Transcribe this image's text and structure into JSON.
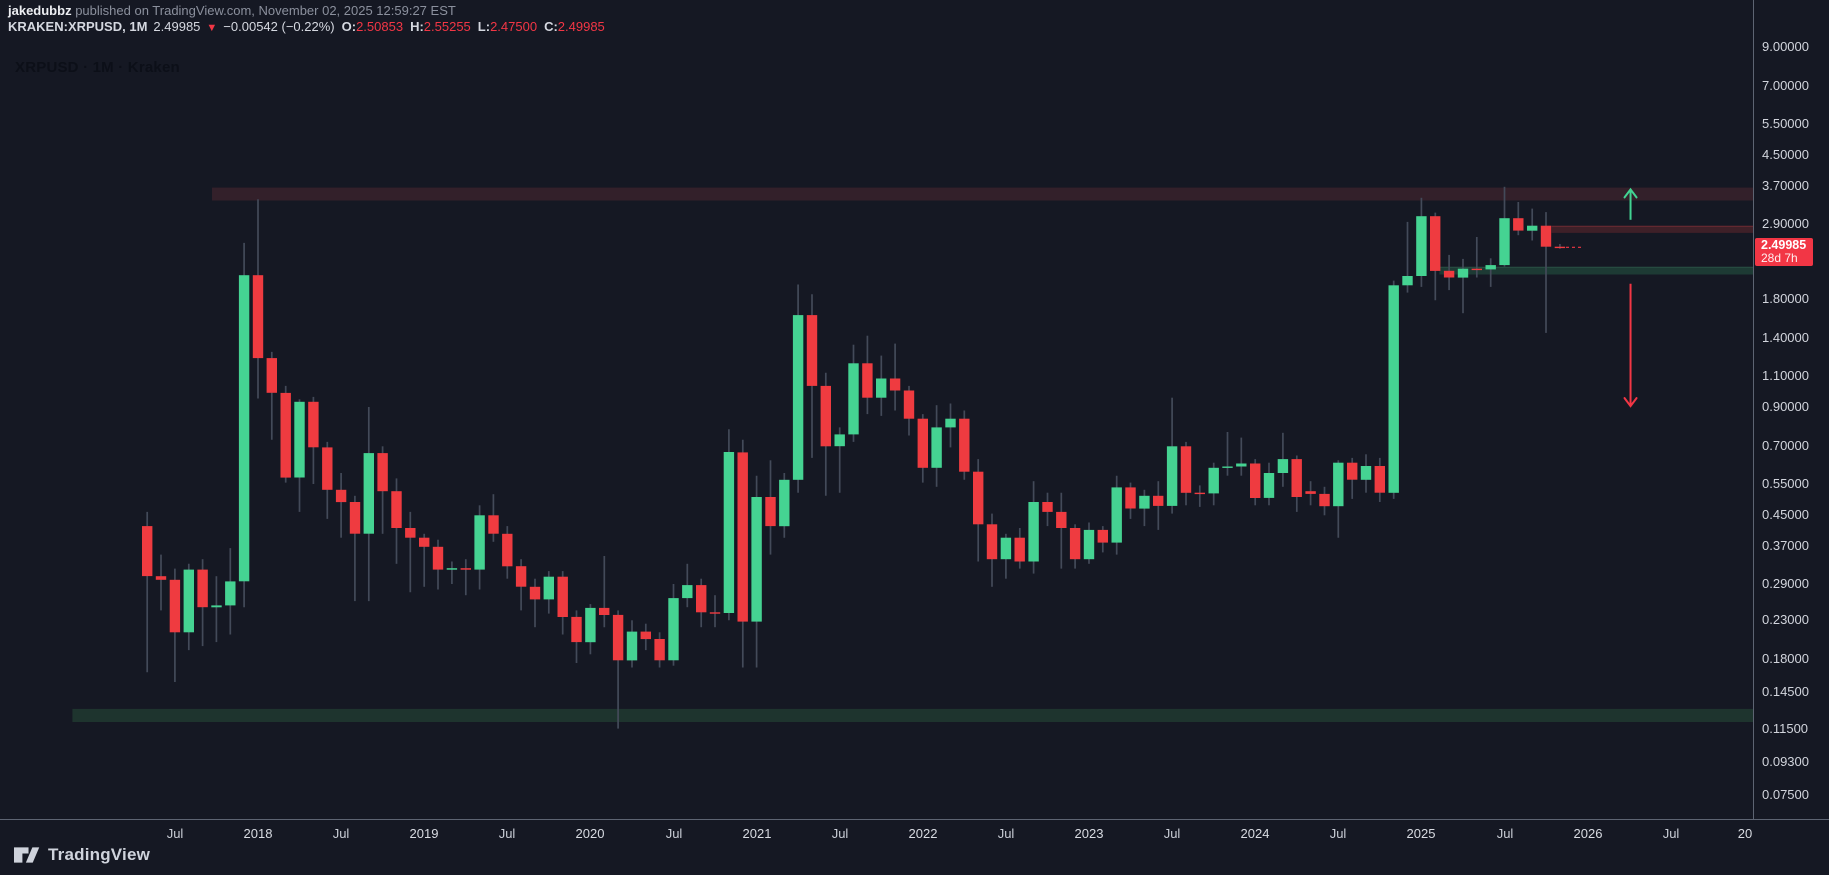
{
  "header": {
    "line1": {
      "user": "jakedubbz",
      "rest": " published on TradingView.com, November 02, 2025 12:59:27 EST"
    },
    "line2": {
      "symbol": "KRAKEN:XRPUSD, 1M",
      "price": "2.49985",
      "direction": "▼",
      "change": "−0.00542 (−0.22%)",
      "ohlc": {
        "o": {
          "label": "O:",
          "value": "2.50853"
        },
        "h": {
          "label": "H:",
          "value": "2.55255"
        },
        "l": {
          "label": "L:",
          "value": "2.47500"
        },
        "c": {
          "label": "C:",
          "value": "2.49985"
        }
      }
    }
  },
  "watermark": "XRPUSD · 1M · Kraken",
  "footer": {
    "brand": "TradingView"
  },
  "price_scale": {
    "ticks": [
      "9.00000",
      "7.00000",
      "5.50000",
      "4.50000",
      "3.70000",
      "2.90000",
      "1.80000",
      "1.40000",
      "1.10000",
      "0.90000",
      "0.70000",
      "0.55000",
      "0.45000",
      "0.37000",
      "0.29000",
      "0.23000",
      "0.18000",
      "0.14500",
      "0.11500",
      "0.09300",
      "0.07500"
    ],
    "last_price_label": {
      "price": "2.49985",
      "countdown": "28d 7h",
      "color": "#f23645"
    }
  },
  "time_scale": {
    "ticks": [
      {
        "label": "Jul",
        "i": 2
      },
      {
        "label": "2018",
        "i": 8
      },
      {
        "label": "Jul",
        "i": 14
      },
      {
        "label": "2019",
        "i": 20
      },
      {
        "label": "Jul",
        "i": 26
      },
      {
        "label": "2020",
        "i": 32
      },
      {
        "label": "Jul",
        "i": 38
      },
      {
        "label": "2021",
        "i": 44
      },
      {
        "label": "Jul",
        "i": 50
      },
      {
        "label": "2022",
        "i": 56
      },
      {
        "label": "Jul",
        "i": 62
      },
      {
        "label": "2023",
        "i": 68
      },
      {
        "label": "Jul",
        "i": 74
      },
      {
        "label": "2024",
        "i": 80
      },
      {
        "label": "Jul",
        "i": 86
      },
      {
        "label": "2025",
        "i": 92
      },
      {
        "label": "Jul",
        "i": 98
      },
      {
        "label": "2026",
        "i": 104
      },
      {
        "label": "Jul",
        "i": 110
      },
      {
        "label": "20",
        "i": 115.4
      }
    ]
  },
  "chart_data": {
    "type": "candlestick",
    "title": "XRPUSD · 1M · Kraken",
    "symbol": "KRAKEN:XRPUSD",
    "interval": "1M",
    "scale": "logarithmic",
    "price_range_visible": [
      0.07,
      9.5
    ],
    "grid": false,
    "up_color": "#45d392",
    "down_color": "#ef3b40",
    "wick_color": "#434a59",
    "candles": [
      [
        "2017-05",
        0.42,
        0.46,
        0.165,
        0.305
      ],
      [
        "2017-06",
        0.305,
        0.35,
        0.245,
        0.298
      ],
      [
        "2017-07",
        0.298,
        0.32,
        0.155,
        0.213
      ],
      [
        "2017-08",
        0.213,
        0.33,
        0.19,
        0.318
      ],
      [
        "2017-09",
        0.318,
        0.34,
        0.195,
        0.25
      ],
      [
        "2017-10",
        0.25,
        0.305,
        0.2,
        0.253
      ],
      [
        "2017-11",
        0.253,
        0.365,
        0.21,
        0.295
      ],
      [
        "2017-12",
        0.295,
        2.57,
        0.25,
        2.09
      ],
      [
        "2018-01",
        2.09,
        3.4,
        0.95,
        1.23
      ],
      [
        "2018-02",
        1.23,
        1.28,
        0.73,
        0.985
      ],
      [
        "2018-03",
        0.985,
        1.03,
        0.555,
        0.573
      ],
      [
        "2018-04",
        0.573,
        0.945,
        0.46,
        0.93
      ],
      [
        "2018-05",
        0.93,
        0.96,
        0.55,
        0.695
      ],
      [
        "2018-06",
        0.695,
        0.72,
        0.44,
        0.53
      ],
      [
        "2018-07",
        0.53,
        0.59,
        0.39,
        0.49
      ],
      [
        "2018-08",
        0.49,
        0.51,
        0.26,
        0.4
      ],
      [
        "2018-09",
        0.4,
        0.9,
        0.26,
        0.67
      ],
      [
        "2018-10",
        0.67,
        0.7,
        0.4,
        0.525
      ],
      [
        "2018-11",
        0.525,
        0.57,
        0.33,
        0.415
      ],
      [
        "2018-12",
        0.415,
        0.46,
        0.275,
        0.39
      ],
      [
        "2019-01",
        0.39,
        0.4,
        0.285,
        0.368
      ],
      [
        "2019-02",
        0.368,
        0.385,
        0.28,
        0.318
      ],
      [
        "2019-03",
        0.318,
        0.335,
        0.29,
        0.321
      ],
      [
        "2019-04",
        0.321,
        0.34,
        0.27,
        0.318
      ],
      [
        "2019-05",
        0.318,
        0.48,
        0.28,
        0.45
      ],
      [
        "2019-06",
        0.45,
        0.515,
        0.38,
        0.4
      ],
      [
        "2019-07",
        0.4,
        0.42,
        0.3,
        0.325
      ],
      [
        "2019-08",
        0.325,
        0.34,
        0.245,
        0.285
      ],
      [
        "2019-09",
        0.285,
        0.3,
        0.22,
        0.263
      ],
      [
        "2019-10",
        0.263,
        0.315,
        0.24,
        0.304
      ],
      [
        "2019-11",
        0.304,
        0.315,
        0.21,
        0.235
      ],
      [
        "2019-12",
        0.235,
        0.245,
        0.175,
        0.2
      ],
      [
        "2020-01",
        0.2,
        0.255,
        0.185,
        0.249
      ],
      [
        "2020-02",
        0.249,
        0.347,
        0.22,
        0.238
      ],
      [
        "2020-03",
        0.238,
        0.245,
        0.115,
        0.178
      ],
      [
        "2020-04",
        0.178,
        0.23,
        0.17,
        0.214
      ],
      [
        "2020-05",
        0.214,
        0.225,
        0.19,
        0.204
      ],
      [
        "2020-06",
        0.204,
        0.213,
        0.17,
        0.178
      ],
      [
        "2020-07",
        0.178,
        0.29,
        0.172,
        0.265
      ],
      [
        "2020-08",
        0.265,
        0.33,
        0.25,
        0.288
      ],
      [
        "2020-09",
        0.288,
        0.3,
        0.22,
        0.242
      ],
      [
        "2020-10",
        0.242,
        0.27,
        0.22,
        0.241
      ],
      [
        "2020-11",
        0.241,
        0.78,
        0.23,
        0.675
      ],
      [
        "2020-12",
        0.673,
        0.73,
        0.17,
        0.228
      ],
      [
        "2021-01",
        0.228,
        0.58,
        0.17,
        0.506
      ],
      [
        "2021-02",
        0.506,
        0.64,
        0.35,
        0.42
      ],
      [
        "2021-03",
        0.42,
        0.59,
        0.39,
        0.565
      ],
      [
        "2021-04",
        0.565,
        1.97,
        0.52,
        1.62
      ],
      [
        "2021-05",
        1.62,
        1.85,
        0.65,
        1.03
      ],
      [
        "2021-06",
        1.03,
        1.12,
        0.51,
        0.7
      ],
      [
        "2021-07",
        0.7,
        0.79,
        0.52,
        0.755
      ],
      [
        "2021-08",
        0.755,
        1.34,
        0.72,
        1.19
      ],
      [
        "2021-09",
        1.19,
        1.42,
        0.86,
        0.955
      ],
      [
        "2021-10",
        0.955,
        1.25,
        0.85,
        1.08
      ],
      [
        "2021-11",
        1.08,
        1.35,
        0.88,
        1.0
      ],
      [
        "2021-12",
        1.0,
        1.03,
        0.75,
        0.835
      ],
      [
        "2022-01",
        0.835,
        0.86,
        0.555,
        0.61
      ],
      [
        "2022-02",
        0.61,
        0.91,
        0.54,
        0.79
      ],
      [
        "2022-03",
        0.79,
        0.92,
        0.695,
        0.835
      ],
      [
        "2022-04",
        0.835,
        0.88,
        0.565,
        0.595
      ],
      [
        "2022-05",
        0.595,
        0.645,
        0.335,
        0.425
      ],
      [
        "2022-06",
        0.425,
        0.455,
        0.285,
        0.34
      ],
      [
        "2022-07",
        0.34,
        0.4,
        0.3,
        0.39
      ],
      [
        "2022-08",
        0.39,
        0.415,
        0.32,
        0.335
      ],
      [
        "2022-09",
        0.335,
        0.56,
        0.31,
        0.49
      ],
      [
        "2022-10",
        0.49,
        0.52,
        0.42,
        0.46
      ],
      [
        "2022-11",
        0.46,
        0.52,
        0.32,
        0.415
      ],
      [
        "2022-12",
        0.415,
        0.425,
        0.32,
        0.34
      ],
      [
        "2023-01",
        0.34,
        0.43,
        0.33,
        0.41
      ],
      [
        "2023-02",
        0.41,
        0.42,
        0.355,
        0.378
      ],
      [
        "2023-03",
        0.378,
        0.58,
        0.35,
        0.538
      ],
      [
        "2023-04",
        0.538,
        0.555,
        0.44,
        0.47
      ],
      [
        "2023-05",
        0.47,
        0.53,
        0.42,
        0.51
      ],
      [
        "2023-06",
        0.51,
        0.56,
        0.41,
        0.478
      ],
      [
        "2023-07",
        0.478,
        0.955,
        0.455,
        0.7
      ],
      [
        "2023-08",
        0.7,
        0.72,
        0.48,
        0.52
      ],
      [
        "2023-09",
        0.52,
        0.545,
        0.475,
        0.518
      ],
      [
        "2023-10",
        0.518,
        0.63,
        0.48,
        0.61
      ],
      [
        "2023-11",
        0.61,
        0.767,
        0.58,
        0.615
      ],
      [
        "2023-12",
        0.615,
        0.74,
        0.58,
        0.627
      ],
      [
        "2024-01",
        0.627,
        0.645,
        0.48,
        0.503
      ],
      [
        "2024-02",
        0.503,
        0.63,
        0.48,
        0.59
      ],
      [
        "2024-03",
        0.59,
        0.763,
        0.54,
        0.645
      ],
      [
        "2024-04",
        0.645,
        0.66,
        0.46,
        0.506
      ],
      [
        "2024-05",
        0.525,
        0.56,
        0.48,
        0.516
      ],
      [
        "2024-06",
        0.516,
        0.54,
        0.45,
        0.477
      ],
      [
        "2024-07",
        0.477,
        0.64,
        0.39,
        0.63
      ],
      [
        "2024-08",
        0.63,
        0.65,
        0.5,
        0.565
      ],
      [
        "2024-09",
        0.565,
        0.665,
        0.52,
        0.617
      ],
      [
        "2024-10",
        0.617,
        0.65,
        0.49,
        0.52
      ],
      [
        "2024-11",
        0.52,
        2.02,
        0.5,
        1.96
      ],
      [
        "2024-12",
        1.96,
        2.94,
        1.87,
        2.08
      ],
      [
        "2025-01",
        2.08,
        3.43,
        1.94,
        3.05
      ],
      [
        "2025-02",
        3.05,
        3.12,
        1.78,
        2.15
      ],
      [
        "2025-03",
        2.15,
        2.38,
        1.9,
        2.06
      ],
      [
        "2025-04",
        2.06,
        2.32,
        1.64,
        2.18
      ],
      [
        "2025-05",
        2.18,
        2.67,
        2.06,
        2.17
      ],
      [
        "2025-06",
        2.17,
        2.33,
        1.94,
        2.23
      ],
      [
        "2025-07",
        2.23,
        3.68,
        2.21,
        3.01
      ],
      [
        "2025-08",
        3.01,
        3.34,
        2.7,
        2.78
      ],
      [
        "2025-09",
        2.78,
        3.2,
        2.61,
        2.87
      ],
      [
        "2025-10",
        2.87,
        3.13,
        1.445,
        2.51
      ],
      [
        "2025-11",
        2.50853,
        2.55255,
        2.475,
        2.49985
      ]
    ],
    "zones": [
      {
        "name": "supply-zone",
        "p_top": 3.66,
        "p_bottom": 3.37,
        "from_i": 4.68,
        "color": "#33202a"
      },
      {
        "name": "demand-zone",
        "p_top": 0.1305,
        "p_bottom": 0.12,
        "from_i": -5.4,
        "color": "#1e342e"
      },
      {
        "name": "mid-support-band",
        "p_top": 2.2,
        "p_bottom": 2.1,
        "from_i": 93.3,
        "color": "#1d3a34",
        "border_top": "#2a4f45"
      },
      {
        "name": "resistance-band",
        "p_top": 2.86,
        "p_bottom": 2.74,
        "from_i": 101.4,
        "color": "#3e2028",
        "border_top": "#6e2a33"
      }
    ],
    "arrows": [
      {
        "name": "up-arrow",
        "dir": "up",
        "x_i": 107.1,
        "p_from": 2.98,
        "p_to": 3.62,
        "color": "#42d392"
      },
      {
        "name": "down-arrow",
        "dir": "down",
        "x_i": 107.1,
        "p_from": 1.98,
        "p_to": 0.905,
        "color": "#f23645"
      }
    ],
    "price_line": {
      "price": 2.49985,
      "style": "dashed",
      "color": "#f23645"
    }
  }
}
